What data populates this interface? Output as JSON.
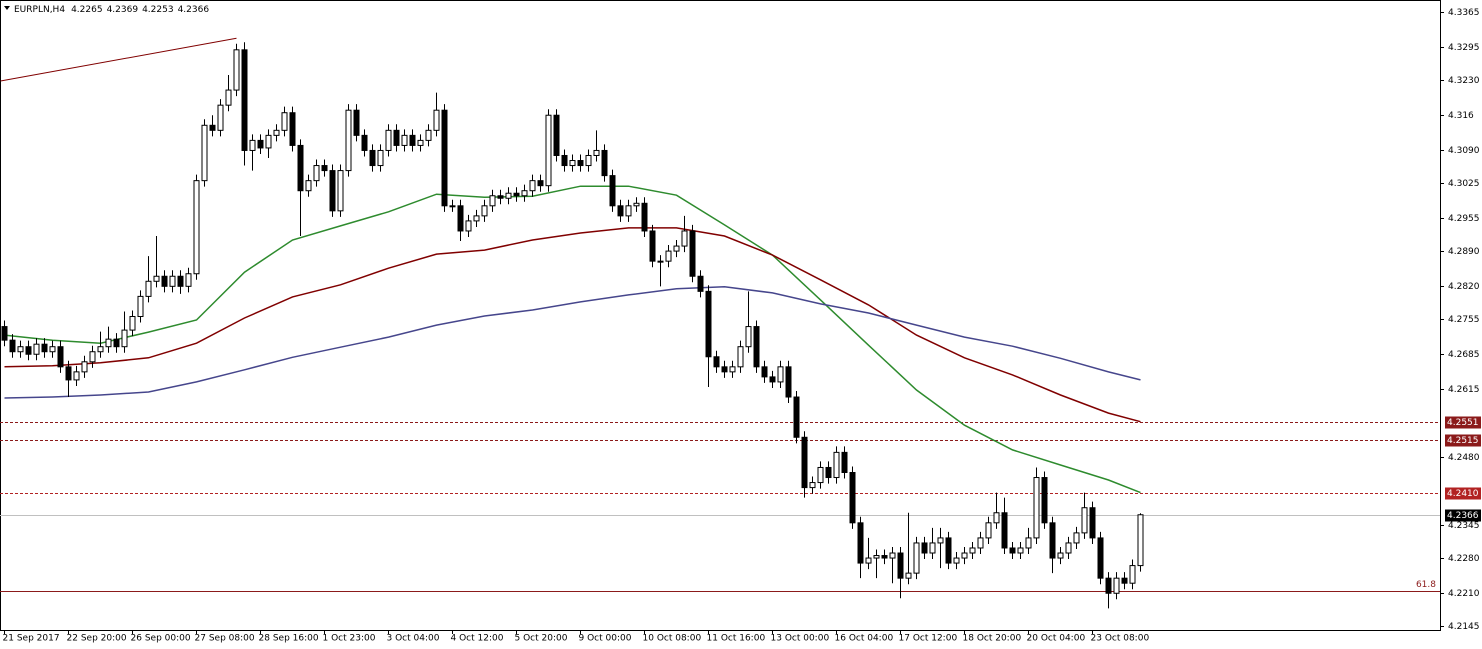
{
  "chart_data": {
    "type": "candlestick",
    "title": "EURPLN,H4",
    "categories": [
      "21 Sep 2017",
      null,
      null,
      null,
      null,
      null,
      null,
      null,
      "22 Sep 20:00",
      null,
      null,
      null,
      null,
      null,
      null,
      null,
      "26 Sep 00:00",
      null,
      null,
      null,
      null,
      null,
      null,
      null,
      "27 Sep 08:00",
      null,
      null,
      null,
      null,
      null,
      null,
      null,
      "28 Sep 16:00",
      null,
      null,
      null,
      null,
      null,
      null,
      null,
      "1 Oct 23:00",
      null,
      null,
      null,
      null,
      null,
      null,
      null,
      "3 Oct 04:00",
      null,
      null,
      null,
      null,
      null,
      null,
      null,
      "4 Oct 12:00",
      null,
      null,
      null,
      null,
      null,
      null,
      null,
      "5 Oct 20:00",
      null,
      null,
      null,
      null,
      null,
      null,
      null,
      "9 Oct 00:00",
      null,
      null,
      null,
      null,
      null,
      null,
      null,
      "10 Oct 08:00",
      null,
      null,
      null,
      null,
      null,
      null,
      null,
      "11 Oct 16:00",
      null,
      null,
      null,
      null,
      null,
      null,
      null,
      "13 Oct 00:00",
      null,
      null,
      null,
      null,
      null,
      null,
      null,
      "16 Oct 04:00",
      null,
      null,
      null,
      null,
      null,
      null,
      null,
      "17 Oct 12:00",
      null,
      null,
      null,
      null,
      null,
      null,
      null,
      "18 Oct 20:00",
      null,
      null,
      null,
      null,
      null,
      null,
      null,
      "20 Oct 04:00",
      null,
      null,
      null,
      null,
      null,
      null,
      null,
      "23 Oct 08:00",
      null,
      null,
      null,
      null,
      null,
      null
    ],
    "candles": [
      [
        4.274,
        4.2752,
        4.2701,
        4.2713
      ],
      [
        4.2713,
        4.2725,
        4.2678,
        4.269
      ],
      [
        4.269,
        4.2712,
        4.2678,
        4.27
      ],
      [
        4.27,
        4.2712,
        4.2673,
        4.2685
      ],
      [
        4.2685,
        4.2717,
        4.2673,
        4.2705
      ],
      [
        4.2705,
        4.2717,
        4.2678,
        4.269
      ],
      [
        4.269,
        4.2712,
        4.2678,
        4.27
      ],
      [
        4.27,
        4.2712,
        4.2648,
        4.266
      ],
      [
        4.266,
        4.2672,
        4.26,
        4.2634
      ],
      [
        4.2634,
        4.2662,
        4.2622,
        4.265
      ],
      [
        4.265,
        4.2682,
        4.2638,
        4.267
      ],
      [
        4.267,
        4.2702,
        4.2658,
        4.269
      ],
      [
        4.269,
        4.273,
        4.2678,
        4.27
      ],
      [
        4.27,
        4.274,
        4.2688,
        4.2715
      ],
      [
        4.2715,
        4.2727,
        4.2688,
        4.27
      ],
      [
        4.27,
        4.277,
        4.2688,
        4.2733
      ],
      [
        4.2733,
        4.2772,
        4.2721,
        4.276
      ],
      [
        4.276,
        4.2812,
        4.2748,
        4.28
      ],
      [
        4.28,
        4.288,
        4.2788,
        4.283
      ],
      [
        4.283,
        4.292,
        4.2818,
        4.284
      ],
      [
        4.284,
        4.2852,
        4.2808,
        4.282
      ],
      [
        4.282,
        4.2852,
        4.2808,
        4.284
      ],
      [
        4.284,
        4.2852,
        4.2805,
        4.282
      ],
      [
        4.282,
        4.2857,
        4.2808,
        4.2845
      ],
      [
        4.2845,
        4.3042,
        4.2833,
        4.303
      ],
      [
        4.303,
        4.3152,
        4.3018,
        4.314
      ],
      [
        4.314,
        4.316,
        4.3118,
        4.313
      ],
      [
        4.313,
        4.3192,
        4.3118,
        4.318
      ],
      [
        4.318,
        4.324,
        4.3168,
        4.321
      ],
      [
        4.321,
        4.3302,
        4.3198,
        4.329
      ],
      [
        4.329,
        4.3305,
        4.306,
        4.309
      ],
      [
        4.309,
        4.3122,
        4.305,
        4.311
      ],
      [
        4.311,
        4.3122,
        4.3083,
        4.3095
      ],
      [
        4.3095,
        4.3132,
        4.3075,
        4.312
      ],
      [
        4.312,
        4.3142,
        4.3108,
        4.313
      ],
      [
        4.313,
        4.3177,
        4.3118,
        4.3165
      ],
      [
        4.3165,
        4.3177,
        4.3088,
        4.31
      ],
      [
        4.31,
        4.3112,
        4.292,
        4.301
      ],
      [
        4.301,
        4.3042,
        4.2998,
        4.303
      ],
      [
        4.303,
        4.3072,
        4.3018,
        4.306
      ],
      [
        4.306,
        4.3072,
        4.3038,
        4.305
      ],
      [
        4.305,
        4.3062,
        4.2958,
        4.297
      ],
      [
        4.297,
        4.3062,
        4.2958,
        4.305
      ],
      [
        4.305,
        4.3182,
        4.3038,
        4.317
      ],
      [
        4.317,
        4.3182,
        4.3108,
        4.312
      ],
      [
        4.312,
        4.3132,
        4.3078,
        4.309
      ],
      [
        4.309,
        4.3102,
        4.3048,
        4.306
      ],
      [
        4.306,
        4.3102,
        4.3048,
        4.309
      ],
      [
        4.309,
        4.3142,
        4.3078,
        4.313
      ],
      [
        4.313,
        4.3142,
        4.3088,
        4.31
      ],
      [
        4.31,
        4.3132,
        4.3088,
        4.312
      ],
      [
        4.312,
        4.3132,
        4.3088,
        4.31
      ],
      [
        4.31,
        4.3122,
        4.3088,
        4.311
      ],
      [
        4.311,
        4.3142,
        4.3098,
        4.313
      ],
      [
        4.313,
        4.3205,
        4.3118,
        4.317
      ],
      [
        4.317,
        4.3182,
        4.2968,
        4.298
      ],
      [
        4.298,
        4.2992,
        4.2968,
        4.298
      ],
      [
        4.298,
        4.2992,
        4.291,
        4.293
      ],
      [
        4.293,
        4.2962,
        4.2918,
        4.295
      ],
      [
        4.295,
        4.2972,
        4.2938,
        4.296
      ],
      [
        4.296,
        4.2992,
        4.2948,
        4.298
      ],
      [
        4.298,
        4.3012,
        4.2968,
        4.3
      ],
      [
        4.3,
        4.3012,
        4.2983,
        4.2995
      ],
      [
        4.2995,
        4.3017,
        4.2983,
        4.3005
      ],
      [
        4.3005,
        4.3017,
        4.2988,
        4.3
      ],
      [
        4.3,
        4.3022,
        4.2988,
        4.301
      ],
      [
        4.301,
        4.3042,
        4.2998,
        4.303
      ],
      [
        4.303,
        4.3042,
        4.3008,
        4.302
      ],
      [
        4.302,
        4.3172,
        4.3008,
        4.316
      ],
      [
        4.316,
        4.3172,
        4.3068,
        4.308
      ],
      [
        4.308,
        4.3092,
        4.3048,
        4.306
      ],
      [
        4.306,
        4.3082,
        4.3048,
        4.307
      ],
      [
        4.307,
        4.3082,
        4.3048,
        4.306
      ],
      [
        4.306,
        4.3092,
        4.3048,
        4.308
      ],
      [
        4.308,
        4.313,
        4.3068,
        4.309
      ],
      [
        4.309,
        4.3102,
        4.3028,
        4.304
      ],
      [
        4.304,
        4.3052,
        4.2968,
        4.298
      ],
      [
        4.298,
        4.2992,
        4.2948,
        4.296
      ],
      [
        4.296,
        4.2992,
        4.2948,
        4.298
      ],
      [
        4.298,
        4.2997,
        4.2968,
        4.2985
      ],
      [
        4.2985,
        4.2997,
        4.2918,
        4.293
      ],
      [
        4.293,
        4.2942,
        4.2858,
        4.287
      ],
      [
        4.287,
        4.2882,
        4.282,
        4.287
      ],
      [
        4.287,
        4.2902,
        4.2858,
        4.289
      ],
      [
        4.289,
        4.2912,
        4.2878,
        4.29
      ],
      [
        4.29,
        4.296,
        4.2888,
        4.293
      ],
      [
        4.293,
        4.2942,
        4.2828,
        4.284
      ],
      [
        4.284,
        4.2852,
        4.2798,
        4.281
      ],
      [
        4.281,
        4.2822,
        4.262,
        4.268
      ],
      [
        4.268,
        4.2692,
        4.2648,
        4.266
      ],
      [
        4.266,
        4.2672,
        4.2638,
        4.265
      ],
      [
        4.265,
        4.2672,
        4.2638,
        4.266
      ],
      [
        4.266,
        4.2712,
        4.2648,
        4.27
      ],
      [
        4.27,
        4.281,
        4.2688,
        4.274
      ],
      [
        4.274,
        4.2752,
        4.2648,
        4.266
      ],
      [
        4.266,
        4.2672,
        4.2628,
        4.264
      ],
      [
        4.264,
        4.2652,
        4.2618,
        4.263
      ],
      [
        4.263,
        4.2672,
        4.2618,
        4.266
      ],
      [
        4.266,
        4.2672,
        4.2588,
        4.26
      ],
      [
        4.26,
        4.2612,
        4.2508,
        4.252
      ],
      [
        4.252,
        4.2532,
        4.24,
        4.242
      ],
      [
        4.242,
        4.2442,
        4.2408,
        4.243
      ],
      [
        4.243,
        4.2472,
        4.2418,
        4.246
      ],
      [
        4.246,
        4.2472,
        4.2428,
        4.244
      ],
      [
        4.244,
        4.2502,
        4.2428,
        4.249
      ],
      [
        4.249,
        4.2502,
        4.2438,
        4.245
      ],
      [
        4.245,
        4.2462,
        4.2338,
        4.235
      ],
      [
        4.235,
        4.2362,
        4.224,
        4.227
      ],
      [
        4.227,
        4.232,
        4.2258,
        4.228
      ],
      [
        4.228,
        4.2297,
        4.224,
        4.2285
      ],
      [
        4.2285,
        4.2297,
        4.2268,
        4.228
      ],
      [
        4.228,
        4.2302,
        4.223,
        4.229
      ],
      [
        4.229,
        4.2302,
        4.22,
        4.224
      ],
      [
        4.224,
        4.237,
        4.2228,
        4.225
      ],
      [
        4.225,
        4.2322,
        4.2238,
        4.231
      ],
      [
        4.231,
        4.2322,
        4.2278,
        4.229
      ],
      [
        4.229,
        4.234,
        4.2278,
        4.231
      ],
      [
        4.231,
        4.234,
        4.226,
        4.232
      ],
      [
        4.232,
        4.2332,
        4.2258,
        4.227
      ],
      [
        4.227,
        4.2292,
        4.2258,
        4.228
      ],
      [
        4.228,
        4.2302,
        4.2268,
        4.229
      ],
      [
        4.229,
        4.2312,
        4.2278,
        4.23
      ],
      [
        4.23,
        4.2332,
        4.2288,
        4.232
      ],
      [
        4.232,
        4.2362,
        4.2308,
        4.235
      ],
      [
        4.235,
        4.241,
        4.2338,
        4.237
      ],
      [
        4.237,
        4.24,
        4.2288,
        4.23
      ],
      [
        4.23,
        4.2312,
        4.2278,
        4.229
      ],
      [
        4.229,
        4.2312,
        4.2278,
        4.23
      ],
      [
        4.23,
        4.234,
        4.2288,
        4.232
      ],
      [
        4.232,
        4.246,
        4.2308,
        4.244
      ],
      [
        4.244,
        4.2452,
        4.2338,
        4.235
      ],
      [
        4.235,
        4.2362,
        4.225,
        4.228
      ],
      [
        4.228,
        4.2302,
        4.2268,
        4.229
      ],
      [
        4.229,
        4.2322,
        4.2278,
        4.231
      ],
      [
        4.231,
        4.2342,
        4.2298,
        4.233
      ],
      [
        4.233,
        4.241,
        4.2318,
        4.238
      ],
      [
        4.238,
        4.2392,
        4.2308,
        4.232
      ],
      [
        4.232,
        4.2332,
        4.2228,
        4.224
      ],
      [
        4.224,
        4.2252,
        4.218,
        4.221
      ],
      [
        4.221,
        4.2252,
        4.2198,
        4.224
      ],
      [
        4.224,
        4.2252,
        4.2218,
        4.223
      ],
      [
        4.223,
        4.2277,
        4.2218,
        4.2265
      ],
      [
        4.2265,
        4.2369,
        4.2253,
        4.2366
      ]
    ],
    "ylim": [
      4.2137,
      4.3389
    ],
    "yticks": [
      4.3365,
      4.3295,
      {
        "value": 4.323,
        "label": "4.3230"
      },
      4.316,
      {
        "value": 4.309,
        "label": "4.3090"
      },
      4.3025,
      4.2955,
      {
        "value": 4.289,
        "label": "4.2890"
      },
      {
        "value": 4.282,
        "label": "4.2820"
      },
      4.2755,
      4.2685,
      4.2615,
      {
        "value": 4.248,
        "label": "4.2480"
      },
      4.2345,
      {
        "value": 4.228,
        "label": "4.2280"
      },
      {
        "value": 4.221,
        "label": "4.2210"
      },
      4.2145
    ],
    "series": [
      {
        "color": "#2e8b2e",
        "x": [
          0,
          6,
          12,
          18,
          24,
          30,
          36,
          42,
          48,
          54,
          60,
          66,
          72,
          78,
          84,
          90,
          96,
          102,
          108,
          114,
          120,
          126,
          132,
          138,
          142
        ],
        "values": [
          4.2723,
          4.2713,
          4.2707,
          4.2729,
          4.2753,
          4.2848,
          4.2912,
          4.294,
          4.2968,
          4.3003,
          4.2997,
          4.2999,
          4.3019,
          4.3019,
          4.3001,
          4.2942,
          4.2882,
          4.2793,
          4.2703,
          4.2614,
          4.2544,
          4.2495,
          4.2465,
          4.2435,
          4.241
        ]
      },
      {
        "color": "#800000",
        "x": [
          0,
          6,
          12,
          18,
          24,
          30,
          36,
          42,
          48,
          54,
          60,
          66,
          72,
          78,
          84,
          90,
          96,
          102,
          108,
          114,
          120,
          126,
          132,
          138,
          142
        ],
        "values": [
          4.266,
          4.2662,
          4.2668,
          4.2678,
          4.2707,
          4.2757,
          4.2799,
          4.2823,
          4.2856,
          4.2884,
          4.2892,
          4.2912,
          4.2926,
          4.2936,
          4.2936,
          4.292,
          4.2882,
          4.2833,
          4.2783,
          4.2723,
          4.2678,
          4.2644,
          4.2604,
          4.2568,
          4.2551
        ]
      },
      {
        "color": "#46468c",
        "x": [
          0,
          6,
          12,
          18,
          24,
          30,
          36,
          42,
          48,
          54,
          60,
          66,
          72,
          78,
          84,
          90,
          96,
          102,
          108,
          114,
          120,
          126,
          132,
          138,
          142
        ],
        "values": [
          4.2598,
          4.26,
          4.2604,
          4.261,
          4.263,
          4.2654,
          4.2679,
          4.2699,
          4.2719,
          4.2743,
          4.2761,
          4.2773,
          4.2789,
          4.2803,
          4.2815,
          4.2819,
          4.2807,
          4.2785,
          4.2767,
          4.2743,
          4.2719,
          4.2701,
          4.2677,
          4.265,
          4.2634
        ]
      }
    ],
    "trendline": {
      "color": "#800000",
      "x": [
        0,
        29
      ],
      "values": [
        4.3228,
        4.3313
      ]
    },
    "levels": [
      {
        "value": 4.2551,
        "color": "#8b1a1a",
        "style": "dashed"
      },
      {
        "value": 4.2515,
        "color": "#8b1a1a",
        "style": "dashed"
      },
      {
        "value": 4.241,
        "label": "4.2410",
        "color": "#b22222",
        "style": "dashed"
      },
      {
        "value": 4.2366,
        "color": "#000000",
        "style": "solid"
      }
    ],
    "fib": {
      "level": 61.8,
      "price": 4.2214,
      "color": "#8b1a1a"
    }
  }
}
